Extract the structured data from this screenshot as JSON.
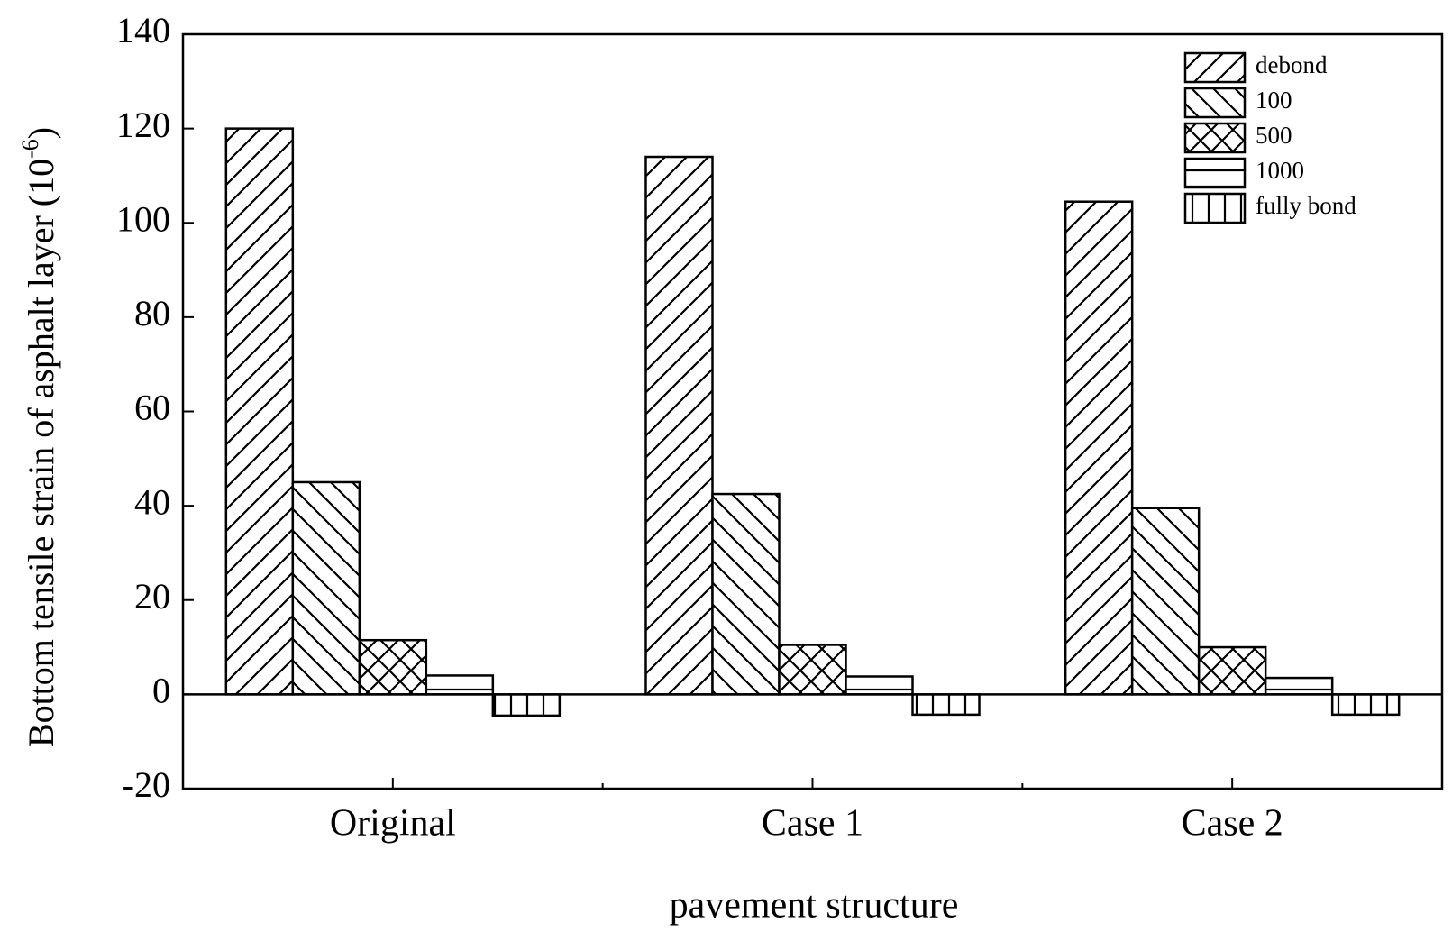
{
  "chart_data": {
    "type": "bar",
    "x_label": "pavement structure",
    "y_label": [
      "Bottom tensile strain of asphalt layer (10",
      "-6",
      ")"
    ],
    "categories": [
      "Original",
      "Case 1",
      "Case 2"
    ],
    "series": [
      {
        "name": "debond",
        "color": "#000000",
        "pattern": "forward-diagonal",
        "values": [
          120,
          114,
          104.5
        ]
      },
      {
        "name": "100",
        "color": "#000000",
        "pattern": "backward-diagonal",
        "values": [
          45,
          42.5,
          39.5
        ]
      },
      {
        "name": "500",
        "color": "#000000",
        "pattern": "cross-diagonal",
        "values": [
          11.5,
          10.5,
          10
        ]
      },
      {
        "name": "1000",
        "color": "#000000",
        "pattern": "horizontal",
        "values": [
          4,
          3.8,
          3.5
        ]
      },
      {
        "name": "fully bond",
        "color": "#000000",
        "pattern": "vertical",
        "values": [
          -4.5,
          -4.3,
          -4.3
        ]
      }
    ],
    "ylim": [
      -20,
      140
    ],
    "yticks": [
      -20,
      0,
      20,
      40,
      60,
      80,
      100,
      120,
      140
    ],
    "legend": "upper-right",
    "zero_line": true
  }
}
